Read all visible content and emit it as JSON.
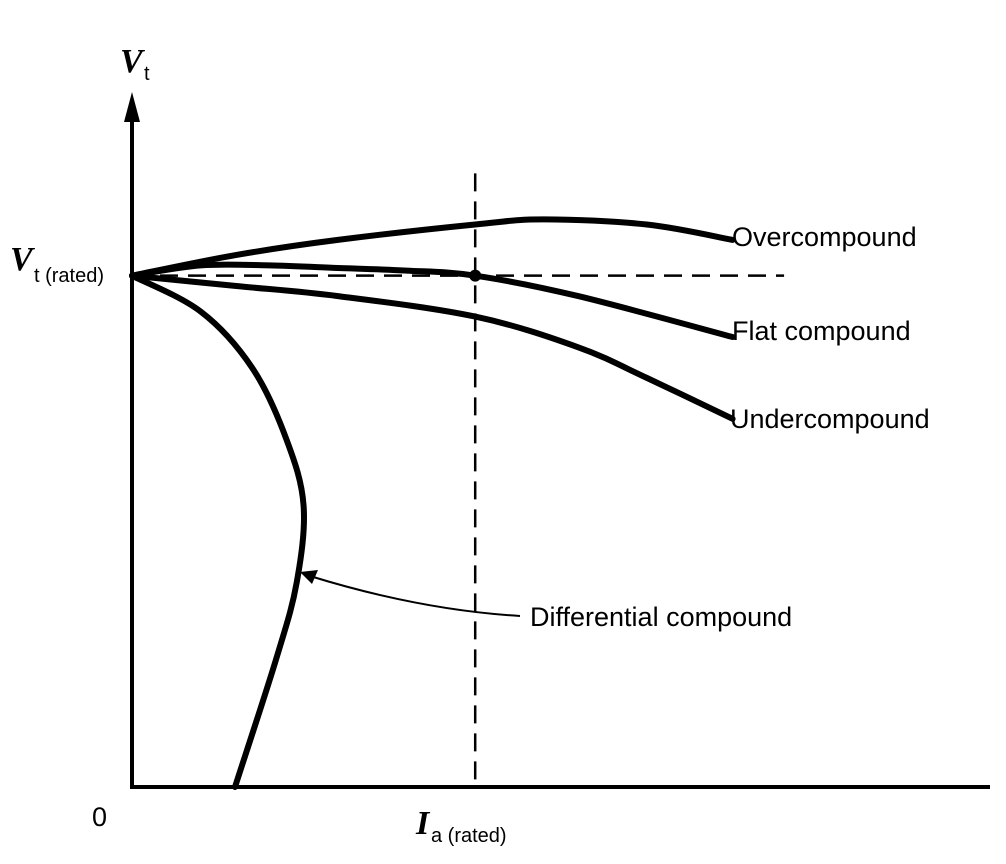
{
  "chart_data": {
    "type": "line",
    "title": "",
    "x_axis": {
      "symbol": "I",
      "subscript": "a (rated)",
      "origin_label": "0",
      "rated_value": 1.0,
      "range": [
        0,
        2.5
      ]
    },
    "y_axis": {
      "symbol": "V",
      "subscript": "t",
      "rated_symbol": "V",
      "rated_subscript": "t (rated)",
      "rated_value": 1.0,
      "range": [
        0,
        1.5
      ]
    },
    "grid": false,
    "rated_marker": {
      "x": 1.0,
      "y": 1.0
    },
    "series": [
      {
        "name": "Overcompound",
        "x": [
          0,
          0.3,
          0.6,
          1.0,
          1.2,
          1.5,
          1.75
        ],
        "y": [
          1.0,
          1.04,
          1.07,
          1.1,
          1.11,
          1.1,
          1.07
        ]
      },
      {
        "name": "Flat compound",
        "x": [
          0,
          0.2,
          0.4,
          0.6,
          0.8,
          1.0,
          1.3,
          1.75
        ],
        "y": [
          1.0,
          1.02,
          1.02,
          1.015,
          1.01,
          1.0,
          0.96,
          0.88
        ]
      },
      {
        "name": "Undercompound",
        "x": [
          0,
          0.3,
          0.6,
          1.0,
          1.3,
          1.5,
          1.75
        ],
        "y": [
          1.0,
          0.98,
          0.96,
          0.92,
          0.86,
          0.8,
          0.72
        ]
      },
      {
        "name": "Differential compound",
        "x": [
          0,
          0.2,
          0.35,
          0.45,
          0.5,
          0.48,
          0.42,
          0.3
        ],
        "y": [
          1.0,
          0.93,
          0.82,
          0.68,
          0.55,
          0.4,
          0.25,
          0.0
        ]
      }
    ]
  }
}
